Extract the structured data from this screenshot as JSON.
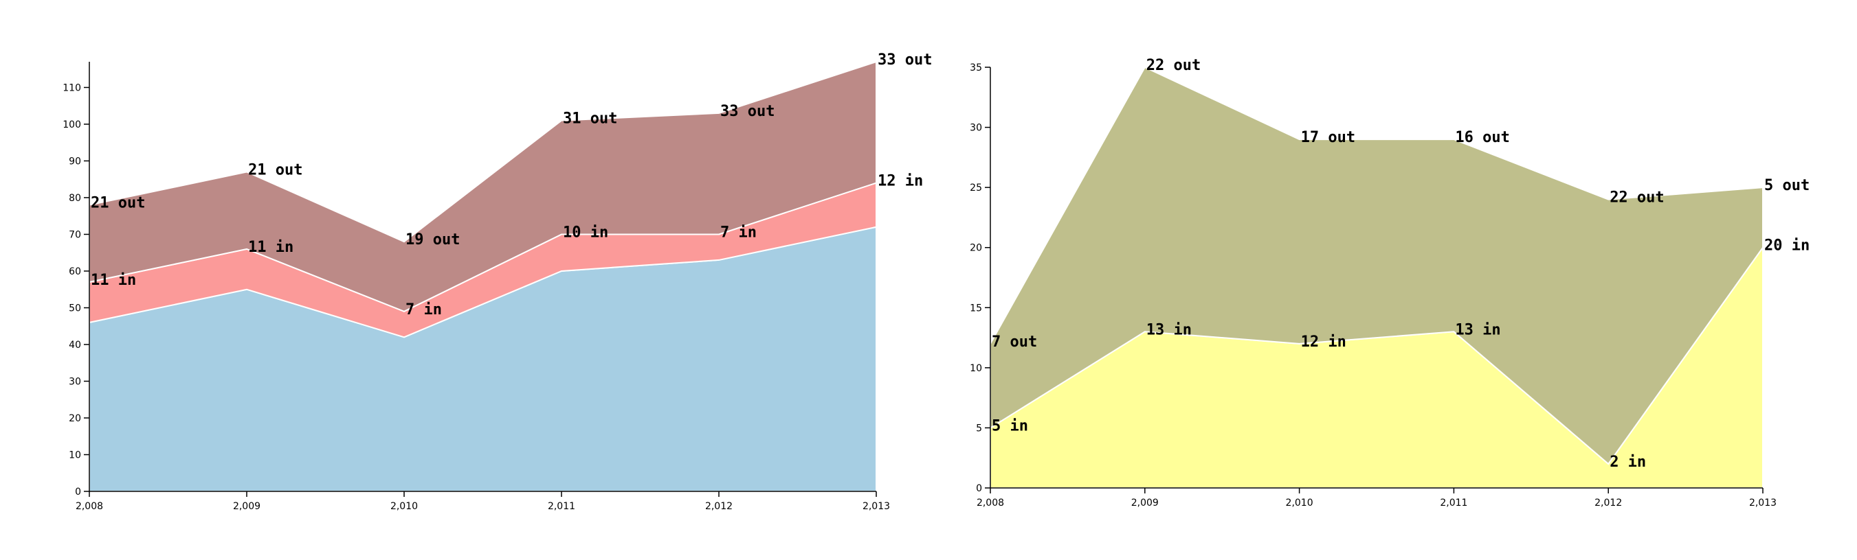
{
  "chart_data": [
    {
      "type": "area",
      "stacked": true,
      "x": [
        2008,
        2009,
        2010,
        2011,
        2012,
        2013
      ],
      "x_tick_labels": [
        "2,008",
        "2,009",
        "2,010",
        "2,011",
        "2,012",
        "2,013"
      ],
      "ylim": [
        0,
        117
      ],
      "y_ticks": [
        0,
        10,
        20,
        30,
        40,
        50,
        60,
        70,
        80,
        90,
        100,
        110
      ],
      "grid": false,
      "series": [
        {
          "values": [
            46,
            55,
            42,
            60,
            63,
            72
          ],
          "color": "#a6cee3",
          "labels": []
        },
        {
          "values": [
            11,
            11,
            7,
            10,
            7,
            12
          ],
          "color": "#fb9a99",
          "labels": [
            "11 in",
            "11 in",
            "7 in",
            "10 in",
            "7 in",
            "12 in"
          ]
        },
        {
          "values": [
            21,
            21,
            19,
            31,
            33,
            33
          ],
          "color": "#bc8a87",
          "labels": [
            "21 out",
            "21 out",
            "19 out",
            "31 out",
            "33 out",
            "33 out"
          ]
        }
      ]
    },
    {
      "type": "area",
      "stacked": true,
      "x": [
        2008,
        2009,
        2010,
        2011,
        2012,
        2013
      ],
      "x_tick_labels": [
        "2,008",
        "2,009",
        "2,010",
        "2,011",
        "2,012",
        "2,013"
      ],
      "ylim": [
        0,
        35
      ],
      "y_ticks": [
        0,
        5,
        10,
        15,
        20,
        25,
        30,
        35
      ],
      "grid": false,
      "series": [
        {
          "values": [
            5,
            13,
            12,
            13,
            2,
            20
          ],
          "color": "#ffff99",
          "labels": [
            "5 in",
            "13 in",
            "12 in",
            "13 in",
            "2 in",
            "20 in"
          ]
        },
        {
          "values": [
            7,
            22,
            17,
            16,
            22,
            5
          ],
          "color": "#bfbf8c",
          "labels": [
            "7 out",
            "22 out",
            "17 out",
            "16 out",
            "22 out",
            "5 out"
          ]
        }
      ]
    }
  ]
}
